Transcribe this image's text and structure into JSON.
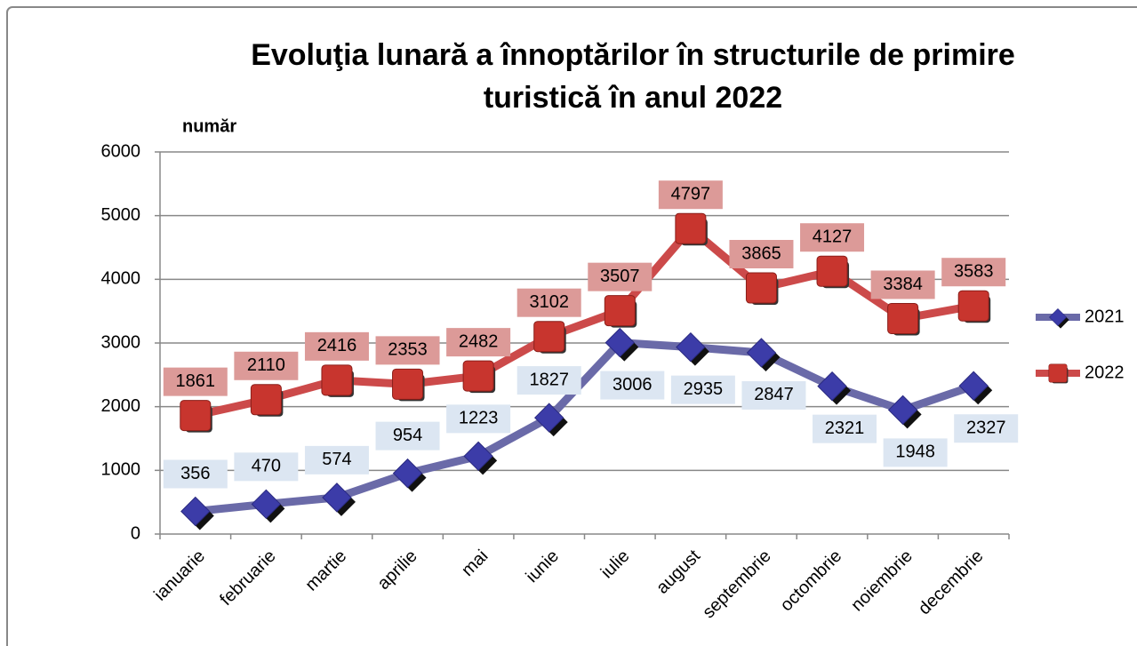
{
  "chart_data": {
    "type": "line",
    "title": "Evoluţia lunară a înnoptărilor în structurile de primire turistică în anul 2022",
    "y_axis_label": "număr",
    "categories": [
      "ianuarie",
      "februarie",
      "martie",
      "aprilie",
      "mai",
      "iunie",
      "iulie",
      "august",
      "septembrie",
      "octombrie",
      "noiembrie",
      "decembrie"
    ],
    "series": [
      {
        "name": "2021",
        "color": "#6a6aa8",
        "marker_color": "#3c3ca8",
        "marker": "diamond",
        "label_fill": "#dce6f2",
        "values": [
          356,
          470,
          574,
          954,
          1223,
          1827,
          3006,
          2935,
          2847,
          2321,
          1948,
          2327
        ]
      },
      {
        "name": "2022",
        "color": "#cc4a4a",
        "marker_color": "#c8352e",
        "marker": "square",
        "label_fill": "#dc9a98",
        "values": [
          1861,
          2110,
          2416,
          2353,
          2482,
          3102,
          3507,
          4797,
          3865,
          4127,
          3384,
          3583
        ]
      }
    ],
    "ylim": [
      0,
      6000
    ],
    "yticks": [
      0,
      1000,
      2000,
      3000,
      4000,
      5000,
      6000
    ],
    "grid": true,
    "legend": "right"
  }
}
